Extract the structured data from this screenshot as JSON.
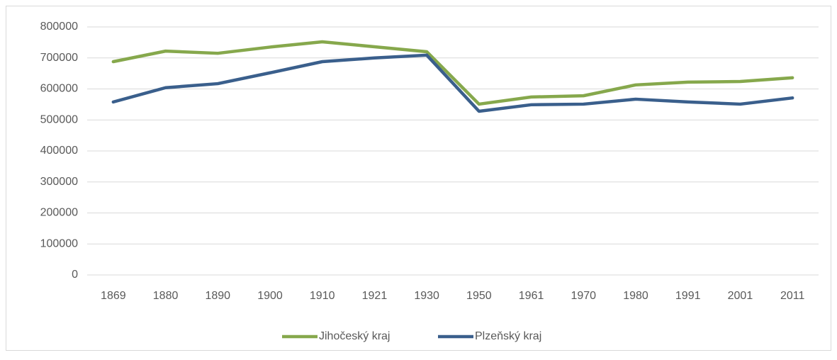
{
  "chart_data": {
    "type": "line",
    "categories": [
      "1869",
      "1880",
      "1890",
      "1900",
      "1910",
      "1921",
      "1930",
      "1950",
      "1961",
      "1970",
      "1980",
      "1991",
      "2001",
      "2011"
    ],
    "series": [
      {
        "name": "Jihočeský kraj",
        "color": "#86a84c",
        "values": [
          688000,
          722000,
          715000,
          735000,
          752000,
          736000,
          720000,
          551000,
          574000,
          578000,
          613000,
          622000,
          624000,
          636000
        ]
      },
      {
        "name": "Plzeňský kraj",
        "color": "#3a5f8c",
        "values": [
          558000,
          604000,
          617000,
          652000,
          688000,
          700000,
          709000,
          528000,
          549000,
          551000,
          567000,
          558000,
          551000,
          571000
        ]
      }
    ],
    "ylim": [
      0,
      800000
    ],
    "yticks": [
      0,
      100000,
      200000,
      300000,
      400000,
      500000,
      600000,
      700000,
      800000
    ],
    "grid": true,
    "legend": "bottom"
  }
}
